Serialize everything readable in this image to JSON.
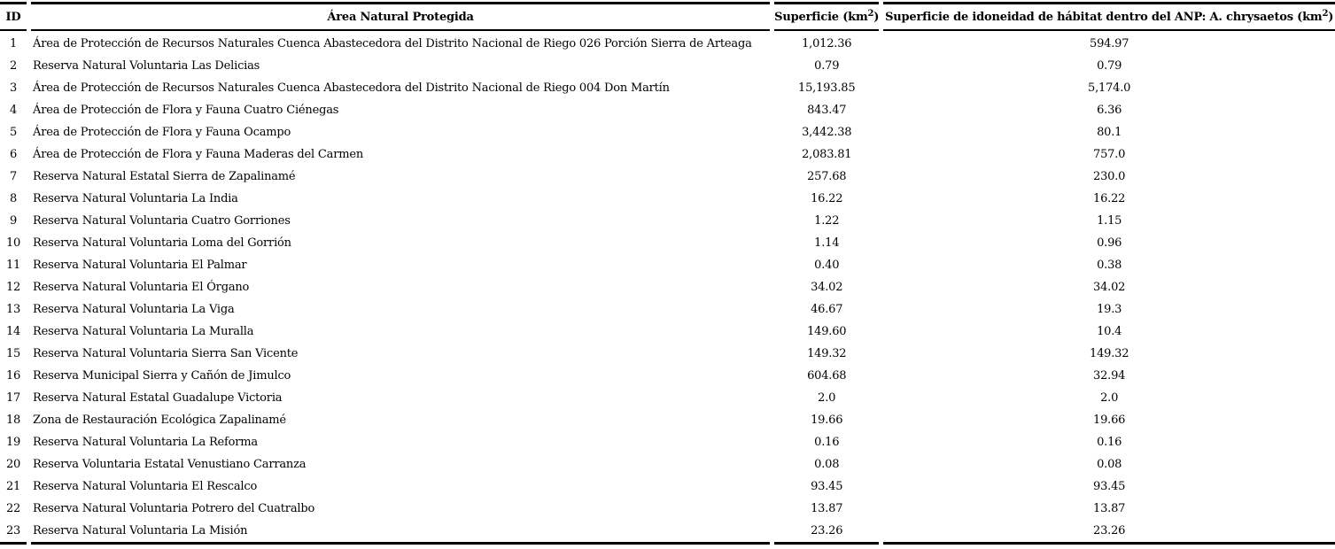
{
  "page": {
    "background_color": "#ffffff",
    "text_color": "#000000"
  },
  "table": {
    "headers": {
      "id": "ID",
      "anp": "Área Natural Protegida",
      "superficie_prefix": "Superficie (km",
      "superficie_sup": "2",
      "superficie_suffix": ")",
      "idoneidad_prefix": "Superficie de idoneidad de hábitat dentro del ANP: A. chrysaetos (km",
      "idoneidad_sup": "2",
      "idoneidad_suffix": ")"
    },
    "rows": [
      {
        "id": "1",
        "name": "Área de Protección de Recursos Naturales Cuenca Abastecedora del Distrito Nacional de Riego 026 Porción Sierra de Arteaga",
        "superficie": "1,012.36",
        "idoneidad": "594.97"
      },
      {
        "id": "2",
        "name": "Reserva Natural Voluntaria Las Delicias",
        "superficie": "0.79",
        "idoneidad": "0.79"
      },
      {
        "id": "3",
        "name": "Área de Protección de Recursos Naturales Cuenca Abastecedora del Distrito Nacional de Riego 004 Don Martín",
        "superficie": "15,193.85",
        "idoneidad": "5,174.0"
      },
      {
        "id": "4",
        "name": "Área de Protección de Flora y Fauna Cuatro Ciénegas",
        "superficie": "843.47",
        "idoneidad": "6.36"
      },
      {
        "id": "5",
        "name": "Área de Protección de Flora y Fauna Ocampo",
        "superficie": "3,442.38",
        "idoneidad": "80.1"
      },
      {
        "id": "6",
        "name": "Área de Protección de Flora y Fauna Maderas del Carmen",
        "superficie": "2,083.81",
        "idoneidad": "757.0"
      },
      {
        "id": "7",
        "name": "Reserva Natural Estatal Sierra de Zapalinamé",
        "superficie": "257.68",
        "idoneidad": "230.0"
      },
      {
        "id": "8",
        "name": "Reserva Natural Voluntaria La India",
        "superficie": "16.22",
        "idoneidad": "16.22"
      },
      {
        "id": "9",
        "name": "Reserva Natural Voluntaria Cuatro Gorriones",
        "superficie": "1.22",
        "idoneidad": "1.15"
      },
      {
        "id": "10",
        "name": "Reserva Natural Voluntaria Loma del Gorrión",
        "superficie": "1.14",
        "idoneidad": "0.96"
      },
      {
        "id": "11",
        "name": "Reserva Natural Voluntaria El Palmar",
        "superficie": "0.40",
        "idoneidad": "0.38"
      },
      {
        "id": "12",
        "name": "Reserva Natural Voluntaria El Órgano",
        "superficie": "34.02",
        "idoneidad": "34.02"
      },
      {
        "id": "13",
        "name": "Reserva Natural Voluntaria La Viga",
        "superficie": "46.67",
        "idoneidad": "19.3"
      },
      {
        "id": "14",
        "name": "Reserva Natural Voluntaria La Muralla",
        "superficie": "149.60",
        "idoneidad": "10.4"
      },
      {
        "id": "15",
        "name": "Reserva Natural Voluntaria Sierra San Vicente",
        "superficie": "149.32",
        "idoneidad": "149.32"
      },
      {
        "id": "16",
        "name": "Reserva Municipal Sierra y Cañón de Jimulco",
        "superficie": "604.68",
        "idoneidad": "32.94"
      },
      {
        "id": "17",
        "name": "Reserva Natural Estatal Guadalupe Victoria",
        "superficie": "2.0",
        "idoneidad": "2.0"
      },
      {
        "id": "18",
        "name": "Zona de Restauración Ecológica Zapalinamé",
        "superficie": "19.66",
        "idoneidad": "19.66"
      },
      {
        "id": "19",
        "name": "Reserva Natural Voluntaria La Reforma",
        "superficie": "0.16",
        "idoneidad": "0.16"
      },
      {
        "id": "20",
        "name": "Reserva Voluntaria Estatal Venustiano Carranza",
        "superficie": "0.08",
        "idoneidad": "0.08"
      },
      {
        "id": "21",
        "name": "Reserva Natural Voluntaria El Rescalco",
        "superficie": "93.45",
        "idoneidad": "93.45"
      },
      {
        "id": "22",
        "name": "Reserva Natural Voluntaria Potrero del Cuatralbo",
        "superficie": "13.87",
        "idoneidad": "13.87"
      },
      {
        "id": "23",
        "name": "Reserva Natural Voluntaria La Misión",
        "superficie": "23.26",
        "idoneidad": "23.26"
      }
    ]
  }
}
